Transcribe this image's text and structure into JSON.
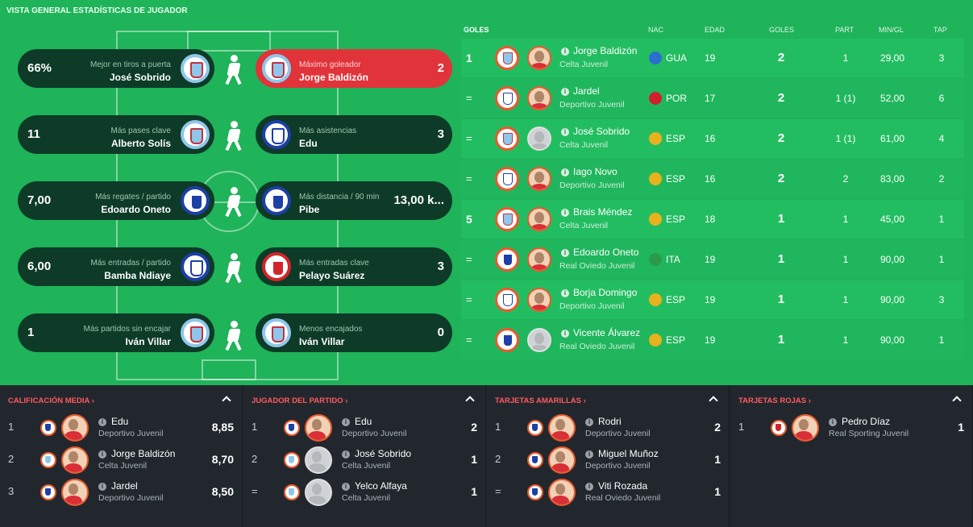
{
  "title": "VISTA GENERAL ESTADÍSTICAS DE JUGADOR",
  "stat_cards": [
    {
      "side": "left",
      "value": "66%",
      "caption": "Mejor en tiros a puerta",
      "player": "José Sobrido",
      "club": "celta",
      "highlight": false
    },
    {
      "side": "right",
      "value": "2",
      "caption": "Máximo goleador",
      "player": "Jorge Baldizón",
      "club": "celta",
      "highlight": true
    },
    {
      "side": "left",
      "value": "11",
      "caption": "Más pases clave",
      "player": "Alberto Solís",
      "club": "celta",
      "highlight": false
    },
    {
      "side": "right",
      "value": "3",
      "caption": "Más asistencias",
      "player": "Edu",
      "club": "depor",
      "highlight": false
    },
    {
      "side": "left",
      "value": "7,00",
      "caption": "Más regates / partido",
      "player": "Edoardo Oneto",
      "club": "oviedo",
      "highlight": false
    },
    {
      "side": "right",
      "value": "13,00 k...",
      "caption": "Más distancia / 90 min",
      "player": "Pibe",
      "club": "oviedo",
      "highlight": false
    },
    {
      "side": "left",
      "value": "6,00",
      "caption": "Más entradas / partido",
      "player": "Bamba Ndiaye",
      "club": "depor",
      "highlight": false
    },
    {
      "side": "right",
      "value": "3",
      "caption": "Más entradas clave",
      "player": "Pelayo Suárez",
      "club": "sporting",
      "highlight": false
    },
    {
      "side": "left",
      "value": "1",
      "caption": "Más partidos sin encajar",
      "player": "Iván Villar",
      "club": "celta",
      "highlight": false
    },
    {
      "side": "right",
      "value": "0",
      "caption": "Menos encajados",
      "player": "Iván Villar",
      "club": "celta",
      "highlight": false
    }
  ],
  "goles": {
    "tab_label": "GOLES",
    "tab_arrow": "›",
    "columns": {
      "nac": "NAC",
      "edad": "EDAD",
      "goles": "GOLES",
      "part": "PART",
      "mingl": "MIN/GL",
      "tap": "TAP"
    },
    "rows": [
      {
        "pos": "1",
        "name": "Jorge Baldizón",
        "club_name": "Celta Juvenil",
        "club": "celta",
        "face": true,
        "nac": "GUA",
        "flag": "#2b6fd0",
        "edad": "19",
        "goles": "2",
        "part": "1",
        "mingl": "29,00",
        "tap": "3"
      },
      {
        "pos": "=",
        "name": "Jardel",
        "club_name": "Deportivo Juvenil",
        "club": "depor",
        "face": true,
        "nac": "POR",
        "flag": "#d0202a",
        "edad": "17",
        "goles": "2",
        "part": "1 (1)",
        "mingl": "52,00",
        "tap": "6"
      },
      {
        "pos": "=",
        "name": "José Sobrido",
        "club_name": "Celta Juvenil",
        "club": "celta",
        "face": false,
        "nac": "ESP",
        "flag": "#e8b21c",
        "edad": "16",
        "goles": "2",
        "part": "1 (1)",
        "mingl": "61,00",
        "tap": "4"
      },
      {
        "pos": "=",
        "name": "Iago Novo",
        "club_name": "Deportivo Juvenil",
        "club": "depor",
        "face": true,
        "nac": "ESP",
        "flag": "#e8b21c",
        "edad": "16",
        "goles": "2",
        "part": "2",
        "mingl": "83,00",
        "tap": "2"
      },
      {
        "pos": "5",
        "name": "Brais Méndez",
        "club_name": "Celta Juvenil",
        "club": "celta",
        "face": true,
        "nac": "ESP",
        "flag": "#e8b21c",
        "edad": "18",
        "goles": "1",
        "part": "1",
        "mingl": "45,00",
        "tap": "1"
      },
      {
        "pos": "=",
        "name": "Edoardo Oneto",
        "club_name": "Real Oviedo Juvenil",
        "club": "oviedo",
        "face": true,
        "nac": "ITA",
        "flag": "#2a9a4a",
        "edad": "19",
        "goles": "1",
        "part": "1",
        "mingl": "90,00",
        "tap": "1"
      },
      {
        "pos": "=",
        "name": "Borja Domingo",
        "club_name": "Deportivo Juvenil",
        "club": "depor",
        "face": true,
        "nac": "ESP",
        "flag": "#e8b21c",
        "edad": "19",
        "goles": "1",
        "part": "1",
        "mingl": "90,00",
        "tap": "3"
      },
      {
        "pos": "=",
        "name": "Vicente Álvarez",
        "club_name": "Real Oviedo Juvenil",
        "club": "oviedo",
        "face": false,
        "nac": "ESP",
        "flag": "#e8b21c",
        "edad": "19",
        "goles": "1",
        "part": "1",
        "mingl": "90,00",
        "tap": "1"
      }
    ]
  },
  "panels": [
    {
      "title": "CALIFICACIÓN MEDIA ›",
      "rows": [
        {
          "rank": "1",
          "name": "Edu",
          "club_name": "Deportivo Juvenil",
          "club": "depor",
          "face": true,
          "value": "8,85"
        },
        {
          "rank": "2",
          "name": "Jorge Baldizón",
          "club_name": "Celta Juvenil",
          "club": "celta",
          "face": true,
          "value": "8,70"
        },
        {
          "rank": "3",
          "name": "Jardel",
          "club_name": "Deportivo Juvenil",
          "club": "depor",
          "face": true,
          "value": "8,50"
        }
      ]
    },
    {
      "title": "JUGADOR DEL PARTIDO ›",
      "rows": [
        {
          "rank": "1",
          "name": "Edu",
          "club_name": "Deportivo Juvenil",
          "club": "depor",
          "face": true,
          "value": "2"
        },
        {
          "rank": "2",
          "name": "José Sobrido",
          "club_name": "Celta Juvenil",
          "club": "celta",
          "face": false,
          "value": "1"
        },
        {
          "rank": "=",
          "name": "Yelco Alfaya",
          "club_name": "Celta Juvenil",
          "club": "celta",
          "face": false,
          "value": "1"
        }
      ]
    },
    {
      "title": "TARJETAS AMARILLAS ›",
      "rows": [
        {
          "rank": "1",
          "name": "Rodri",
          "club_name": "Deportivo Juvenil",
          "club": "depor",
          "face": true,
          "value": "2"
        },
        {
          "rank": "2",
          "name": "Miguel Muñoz",
          "club_name": "Deportivo Juvenil",
          "club": "depor",
          "face": true,
          "value": "1"
        },
        {
          "rank": "=",
          "name": "Viti Rozada",
          "club_name": "Real Oviedo Juvenil",
          "club": "oviedo",
          "face": true,
          "value": "1"
        }
      ]
    },
    {
      "title": "TARJETAS ROJAS ›",
      "rows": [
        {
          "rank": "1",
          "name": "Pedro Díaz",
          "club_name": "Real Sporting Juvenil",
          "club": "sporting",
          "face": true,
          "value": "1"
        }
      ]
    }
  ]
}
